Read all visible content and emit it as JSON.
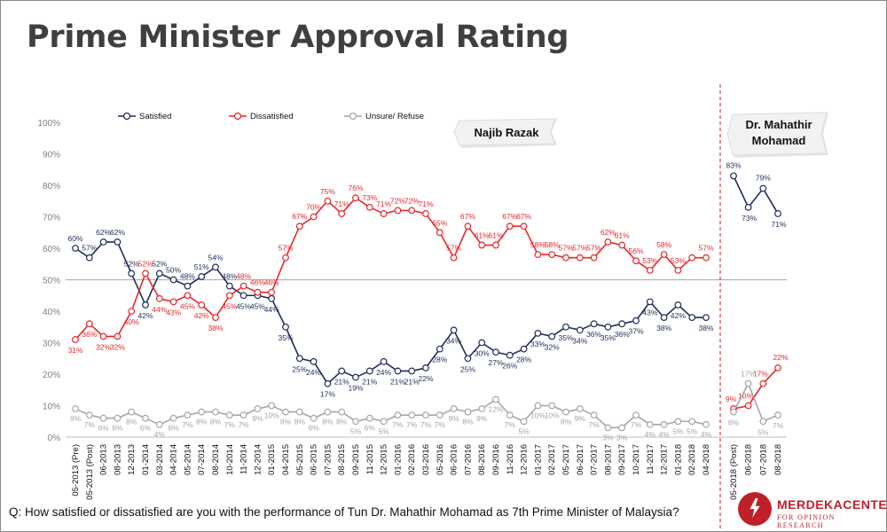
{
  "title": "Prime Minister Approval Rating",
  "question": "Q: How satisfied or dissatisfied are you with the performance of Tun Dr. Mahathir Mohamad as 7th Prime Minister of Malaysia?",
  "logo": {
    "name": "MERDEKACENTER",
    "subtitle": "FOR OPINION RESEARCH"
  },
  "colors": {
    "satisfied": "#1f2d5a",
    "dissatisfied": "#e8262a",
    "unsure": "#a6a6a6",
    "divider": "#c0202a"
  },
  "chart_data": {
    "type": "line",
    "ylim": [
      0,
      100
    ],
    "yticks": [
      "0%",
      "10%",
      "20%",
      "30%",
      "40%",
      "50%",
      "60%",
      "70%",
      "80%",
      "90%",
      "100%"
    ],
    "reference_line": 50,
    "legend_position": "top-left",
    "grid": false,
    "panels": [
      {
        "label": "Najib Razak",
        "categories": [
          "05-2013 (Pre)",
          "05-2013 (Post)",
          "06-2013",
          "08-2013",
          "12-2013",
          "01-2014",
          "03-2014",
          "04-2014",
          "05-2014",
          "07-2014",
          "08-2014",
          "10-2014",
          "11-2014",
          "12-2014",
          "01-2015",
          "04-2015",
          "05-2015",
          "06-2015",
          "07-2015",
          "08-2015",
          "09-2015",
          "11-2015",
          "12-2015",
          "01-2016",
          "02-2016",
          "03-2016",
          "05-2016",
          "06-2016",
          "07-2016",
          "08-2016",
          "09-2016",
          "11-2016",
          "12-2016",
          "01-2017",
          "02-2017",
          "05-2017",
          "06-2017",
          "07-2017",
          "08-2017",
          "09-2017",
          "10-2017",
          "11-2017",
          "12-2017",
          "01-2018",
          "02-2018",
          "04-2018"
        ],
        "series": [
          {
            "name": "Satisfied",
            "values": [
              60,
              57,
              62,
              62,
              52,
              42,
              52,
              50,
              48,
              51,
              54,
              48,
              45,
              45,
              44,
              35,
              25,
              24,
              17,
              21,
              19,
              21,
              24,
              21,
              21,
              22,
              28,
              34,
              25,
              30,
              27,
              26,
              28,
              33,
              32,
              35,
              34,
              36,
              35,
              36,
              37,
              43,
              38,
              42,
              38,
              38
            ],
            "labels": [
              "60%",
              "57%",
              "62%",
              "62%",
              "52%",
              "42%",
              "52%",
              "50%",
              "48%",
              "51%",
              "54%",
              "48%",
              "45%",
              "45%",
              "44%",
              "35%",
              "25%",
              "24%",
              "17%",
              "21%",
              "19%",
              "21%",
              "24%",
              "21%",
              "21%",
              "22%",
              "28%",
              "34%",
              "25%",
              "30%",
              "27%",
              "26%",
              "28%",
              "33%",
              "32%",
              "35%",
              "34%",
              "36%",
              "35%",
              "36%",
              "37%",
              "43%",
              "38%",
              "42%",
              "",
              "38%"
            ]
          },
          {
            "name": "Dissatisfied",
            "values": [
              31,
              36,
              32,
              32,
              40,
              52,
              44,
              43,
              45,
              42,
              38,
              45,
              48,
              46,
              46,
              57,
              67,
              70,
              75,
              71,
              76,
              73,
              71,
              72,
              72,
              71,
              65,
              57,
              67,
              61,
              61,
              67,
              67,
              58,
              58,
              57,
              57,
              57,
              62,
              61,
              56,
              53,
              58,
              53,
              57,
              57
            ],
            "labels": [
              "31%",
              "36%",
              "32%",
              "32%",
              "40%",
              "52%",
              "44%",
              "43%",
              "45%",
              "42%",
              "38%",
              "45%",
              "48%",
              "46%",
              "46%",
              "57%",
              "67%",
              "70%",
              "75%",
              "71%",
              "76%",
              "73%",
              "71%",
              "72%",
              "72%",
              "71%",
              "65%",
              "57%",
              "67%",
              "61%",
              "61%",
              "67%",
              "67%",
              "58%",
              "58%",
              "57%",
              "57%",
              "57%",
              "62%",
              "61%",
              "56%",
              "53%",
              "58%",
              "53%",
              "",
              "57%"
            ]
          },
          {
            "name": "Unsure/ Refuse",
            "values": [
              9,
              7,
              6,
              6,
              8,
              6,
              4,
              6,
              7,
              8,
              8,
              7,
              7,
              9,
              10,
              8,
              8,
              6,
              8,
              8,
              5,
              6,
              5,
              7,
              7,
              7,
              7,
              9,
              8,
              9,
              12,
              7,
              5,
              10,
              10,
              8,
              9,
              7,
              3,
              3,
              7,
              4,
              4,
              5,
              5,
              4
            ],
            "labels": [
              "9%",
              "7%",
              "6%",
              "6%",
              "8%",
              "6%",
              "4%",
              "6%",
              "7%",
              "8%",
              "8%",
              "7%",
              "7%",
              "9%",
              "10%",
              "8%",
              "8%",
              "6%",
              "8%",
              "8%",
              "5%",
              "6%",
              "5%",
              "7%",
              "7%",
              "7%",
              "7%",
              "9%",
              "8%",
              "9%",
              "12%",
              "7%",
              "5%",
              "10%",
              "10%",
              "8%",
              "9%",
              "7%",
              "3%",
              "3%",
              "7%",
              "4%",
              "4%",
              "5%",
              "5%",
              "4%"
            ]
          }
        ]
      },
      {
        "label": "Dr. Mahathir Mohamad",
        "categories": [
          "05-2018 (Post)",
          "06-2018",
          "07-2018",
          "08-2018"
        ],
        "series": [
          {
            "name": "Satisfied",
            "values": [
              83,
              73,
              79,
              71
            ],
            "labels": [
              "83%",
              "73%",
              "79%",
              "71%"
            ]
          },
          {
            "name": "Dissatisfied",
            "values": [
              9,
              10,
              17,
              22
            ],
            "labels": [
              "9%",
              "10%",
              "17%",
              "22%"
            ]
          },
          {
            "name": "Unsure/ Refuse",
            "values": [
              8,
              17,
              5,
              7
            ],
            "labels": [
              "8%",
              "17%",
              "5%",
              "7%"
            ]
          }
        ]
      }
    ]
  }
}
